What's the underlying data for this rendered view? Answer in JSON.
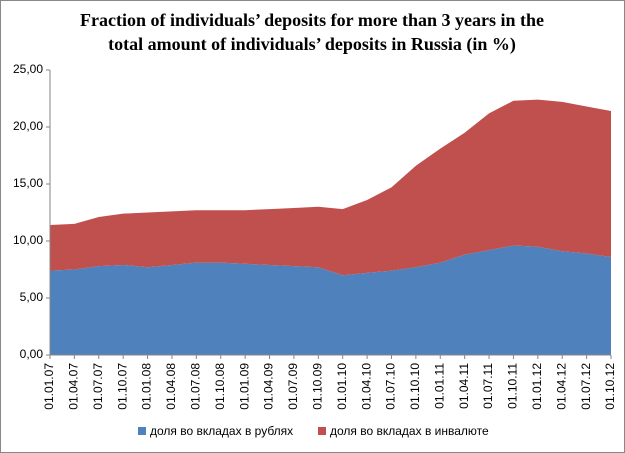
{
  "chart_data": {
    "type": "stacked_area",
    "title": [
      "Fraction of individuals’ deposits for more than 3 years in the",
      "total amount of individuals’ deposits in Russia (in %)"
    ],
    "categories": [
      "01.01.07",
      "01.04.07",
      "01.07.07",
      "01.10.07",
      "01.01.08",
      "01.04.08",
      "01.07.08",
      "01.10.08",
      "01.01.09",
      "01.04.09",
      "01.07.09",
      "01.10.09",
      "01.01.10",
      "01.04.10",
      "01.07.10",
      "01.10.10",
      "01.01.11",
      "01.04.11",
      "01.07.11",
      "01.10.11",
      "01.01.12",
      "01.04.12",
      "01.07.12",
      "01.10.12"
    ],
    "series": [
      {
        "name": "доля во вкладах в рублях",
        "color": "#4f81bd",
        "values": [
          7.4,
          7.5,
          7.8,
          7.9,
          7.7,
          7.9,
          8.1,
          8.1,
          8.0,
          7.9,
          7.8,
          7.7,
          7.0,
          7.2,
          7.4,
          7.7,
          8.1,
          8.8,
          9.2,
          9.6,
          9.5,
          9.1,
          8.9,
          8.6
        ]
      },
      {
        "name": "доля во вкладах в инвалюте",
        "color": "#c0504d",
        "values": [
          4.0,
          4.0,
          4.3,
          4.5,
          4.8,
          4.7,
          4.6,
          4.6,
          4.7,
          4.9,
          5.1,
          5.3,
          5.8,
          6.4,
          7.3,
          8.9,
          10.0,
          10.7,
          12.0,
          12.7,
          12.9,
          13.1,
          12.9,
          12.8
        ]
      }
    ],
    "ylim": [
      0,
      25
    ],
    "yticks": [
      {
        "value": 0,
        "label": "0,00"
      },
      {
        "value": 5,
        "label": "5,00"
      },
      {
        "value": 10,
        "label": "10,00"
      },
      {
        "value": 15,
        "label": "15,00"
      },
      {
        "value": 20,
        "label": "20,00"
      },
      {
        "value": 25,
        "label": "25,00"
      }
    ],
    "legend": "bottom"
  }
}
